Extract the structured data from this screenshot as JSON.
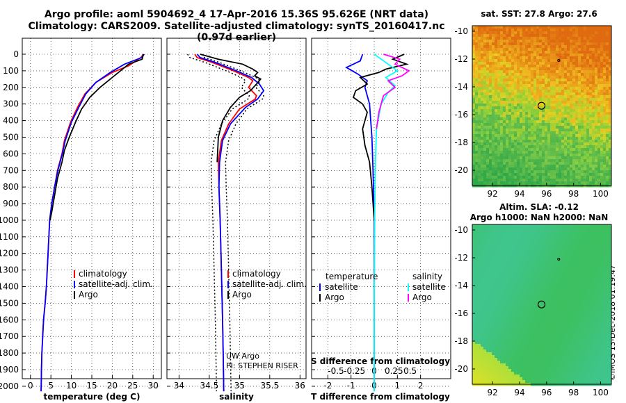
{
  "title_line1": "Argo profile: aoml 5904692_4 17-Apr-2016 15.36S 95.626E (NRT data)",
  "title_line2": "Climatology: CARS2009. Satellite-adjusted climatology: synTS_20160417.nc (0.97d earlier)",
  "sst_title": "sat. SST: 27.8 Argo: 27.6",
  "sla_title1": "Altim. SLA: -0.12",
  "sla_title2": "Argo h1000: NaN h2000: NaN",
  "stamp": "©IMOS 13-Dec-2018 01:19:47",
  "credits": [
    "UW Argo",
    "PI: STEPHEN RISER"
  ],
  "colors": {
    "climatology": "#ff0000",
    "satellite": "#0000ff",
    "argo": "#000000",
    "sal_satellite": "#00ffff",
    "sal_argo": "#ff00ff"
  },
  "chart_data": [
    {
      "type": "line",
      "xlabel": "temperature (deg C)",
      "ylabel": "",
      "xlim": [
        -2,
        32
      ],
      "ylim": [
        2050,
        0
      ],
      "xticks": [
        "0",
        "5",
        "10",
        "15",
        "20",
        "25",
        "30"
      ],
      "yticks": [
        "0",
        "100",
        "200",
        "300",
        "400",
        "500",
        "600",
        "700",
        "800",
        "900",
        "1000",
        "1100",
        "1200",
        "1300",
        "1400",
        "1500",
        "1600",
        "1700",
        "1800",
        "1900",
        "2000"
      ],
      "legend": [
        "climatology",
        "satellite-adj. clim.",
        "Argo"
      ],
      "series": [
        {
          "name": "climatology",
          "x": [
            27.6,
            27.0,
            24.0,
            20.0,
            16.0,
            13.3,
            11.5,
            9.8,
            8.3,
            7.7,
            6.6,
            5.9,
            5.2,
            4.7,
            4.3,
            3.9,
            3.6,
            3.2,
            3.0,
            2.8,
            2.7,
            2.6
          ],
          "y": [
            0,
            20,
            70,
            110,
            170,
            240,
            320,
            410,
            520,
            600,
            700,
            800,
            900,
            1000,
            1200,
            1400,
            1500,
            1600,
            1700,
            1800,
            1900,
            2030
          ]
        },
        {
          "name": "satellite-adj. clim.",
          "x": [
            27.8,
            27.2,
            23.0,
            19.5,
            16.0,
            13.5,
            11.8,
            10.0,
            8.5,
            7.8,
            6.7,
            5.9,
            5.2,
            4.7,
            4.3,
            3.9,
            3.6,
            3.2,
            3.0,
            2.8,
            2.7,
            2.6
          ],
          "y": [
            0,
            20,
            60,
            110,
            170,
            240,
            320,
            410,
            520,
            600,
            700,
            800,
            900,
            1000,
            1200,
            1400,
            1500,
            1600,
            1700,
            1800,
            1900,
            2030
          ]
        },
        {
          "name": "Argo",
          "x": [
            27.6,
            27.3,
            24.0,
            22.0,
            19.5,
            17.0,
            14.5,
            12.5,
            11.0,
            9.5,
            8.3,
            7.7,
            6.6,
            5.9,
            5.2,
            4.8
          ],
          "y": [
            0,
            30,
            60,
            100,
            150,
            200,
            260,
            330,
            410,
            500,
            580,
            650,
            750,
            850,
            950,
            1000
          ]
        }
      ]
    },
    {
      "type": "line",
      "xlabel": "salinity",
      "xlim": [
        33.8,
        36.1
      ],
      "ylim": [
        2050,
        0
      ],
      "xticks": [
        "34",
        "34.5",
        "35",
        "35.5",
        "36"
      ],
      "legend": [
        "climatology",
        "satellite-adj. clim.",
        "Argo"
      ],
      "series": [
        {
          "name": "climatology",
          "x": [
            34.26,
            34.3,
            34.55,
            34.9,
            35.15,
            35.22,
            35.15,
            35.28,
            35.26,
            35.0,
            34.82,
            34.7,
            34.65,
            34.66,
            34.68,
            34.7,
            34.72,
            34.74
          ],
          "y": [
            0,
            20,
            50,
            100,
            140,
            160,
            200,
            250,
            270,
            330,
            420,
            520,
            650,
            800,
            1000,
            1300,
            1600,
            2030
          ]
        },
        {
          "name": "satellite-adj. clim.",
          "x": [
            34.3,
            34.35,
            34.6,
            34.95,
            35.2,
            35.33,
            35.4,
            35.3,
            35.1,
            34.85,
            34.72,
            34.67,
            34.66,
            34.68,
            34.7,
            34.72,
            34.73,
            34.74
          ],
          "y": [
            0,
            20,
            50,
            100,
            140,
            180,
            220,
            270,
            320,
            420,
            520,
            650,
            800,
            1000,
            1300,
            1600,
            1800,
            2030
          ]
        },
        {
          "name": "Argo",
          "x": [
            34.35,
            34.65,
            35.05,
            35.22,
            35.3,
            35.25,
            35.35,
            35.28,
            35.18,
            35.0,
            34.85,
            34.72,
            34.65,
            34.64,
            34.63
          ],
          "y": [
            0,
            30,
            60,
            90,
            110,
            130,
            150,
            180,
            220,
            260,
            320,
            400,
            500,
            580,
            650
          ]
        }
      ]
    },
    {
      "type": "line",
      "xlabel": "T difference from climatology",
      "annotation": "S difference from climatology",
      "xlim": [
        -2.7,
        3.3
      ],
      "ylim": [
        2050,
        0
      ],
      "xticks": [
        "-2",
        "-1",
        "0",
        "1",
        "2"
      ],
      "xticks_salinity": [
        "-0.5",
        "-0.25",
        "0",
        "0.25",
        "0.5"
      ],
      "legend": [
        [
          "temperature",
          "satellite",
          "Argo"
        ],
        [
          "salinity",
          "satellite",
          "Argo"
        ]
      ],
      "series": [
        {
          "name": "satellite",
          "x": [
            -0.5,
            -0.6,
            -1.2,
            -0.7,
            -0.3,
            -0.4,
            -0.2,
            -0.15,
            -0.1,
            -0.05,
            0,
            0,
            0
          ],
          "y": [
            0,
            40,
            80,
            120,
            160,
            200,
            300,
            400,
            500,
            700,
            1000,
            1500,
            2030
          ]
        },
        {
          "name": "Argo",
          "x": [
            1.3,
            0.8,
            1.4,
            0.5,
            0.2,
            -0.6,
            -0.3,
            -0.8,
            -0.9,
            -0.5,
            -0.3,
            -0.5,
            -0.4,
            -0.2,
            -0.1,
            0
          ],
          "y": [
            0,
            30,
            60,
            90,
            110,
            140,
            180,
            220,
            260,
            300,
            350,
            450,
            550,
            650,
            800,
            1000
          ]
        },
        {
          "name": "salinity satellite",
          "x": [
            0,
            0.3,
            0.6,
            1.0,
            0.5,
            0.9,
            0.6,
            0.3,
            0.1,
            0.05,
            0.02,
            0,
            0
          ],
          "y": [
            0,
            30,
            60,
            100,
            140,
            190,
            230,
            300,
            450,
            650,
            1000,
            1500,
            2030
          ]
        },
        {
          "name": "salinity Argo",
          "x": [
            0.4,
            1.1,
            0.9,
            1.5,
            1.2,
            0.6,
            0.9,
            0.4,
            0.2,
            0.1
          ],
          "y": [
            0,
            30,
            60,
            100,
            130,
            160,
            200,
            250,
            350,
            450
          ]
        }
      ]
    },
    {
      "type": "heatmap",
      "title": "sat. SST: 27.8 Argo: 27.6",
      "xticks": [
        "92",
        "94",
        "96",
        "98",
        "100"
      ],
      "yticks": [
        "-10",
        "-12",
        "-14",
        "-16",
        "-18",
        "-20"
      ],
      "marker": "Argo position 15.36S 95.626E"
    },
    {
      "type": "heatmap",
      "title": "Altim. SLA: -0.12",
      "xticks": [
        "92",
        "94",
        "96",
        "98",
        "100"
      ],
      "yticks": [
        "-10",
        "-12",
        "-14",
        "-16",
        "-18",
        "-20"
      ],
      "marker": "Argo position 15.36S 95.626E"
    }
  ]
}
